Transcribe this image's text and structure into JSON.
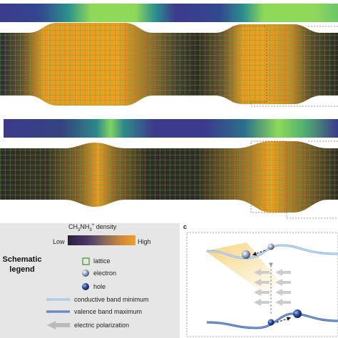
{
  "legend": {
    "title_line1": "Schematic",
    "title_line2": "legend",
    "colorbar_label_prefix": "CH",
    "colorbar_label_sub1": "3",
    "colorbar_label_mid": "NH",
    "colorbar_label_sub2": "3",
    "colorbar_label_sup": "+",
    "colorbar_label_suffix": " density",
    "colorbar_low": "Low",
    "colorbar_high": "High",
    "items": [
      {
        "label": "lattice",
        "icon": "lattice-square-icon"
      },
      {
        "label": "electron",
        "icon": "electron-sphere-icon"
      },
      {
        "label": "hole",
        "icon": "hole-sphere-icon"
      },
      {
        "label": "conductive band minimum",
        "icon": "cbm-line-icon"
      },
      {
        "label": "valence band maximum",
        "icon": "vbm-line-icon"
      },
      {
        "label": "electric polarization",
        "icon": "polarization-arrow-icon"
      }
    ]
  },
  "panel_c_label": "c",
  "colors": {
    "lattice": "#5aa64a",
    "orange": "#f0a020",
    "dark": "#2f2a24",
    "band_light": "#8fb5e3",
    "band_dark": "#3d68b0",
    "arrow": "#bbbbbb"
  }
}
